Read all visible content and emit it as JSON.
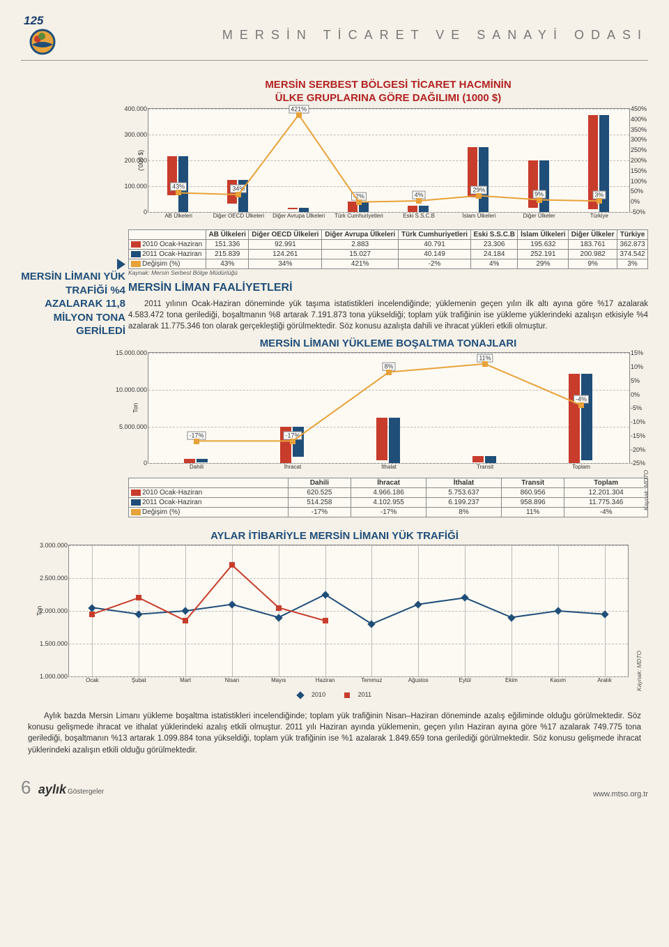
{
  "org_title": "MERSİN TİCARET VE SANAYİ ODASI",
  "logo_num": "125",
  "chart1": {
    "title_line1": "MERSİN SERBEST BÖLGESİ TİCARET HACMİNİN",
    "title_line2": "ÜLKE GRUPLARINA GÖRE DAĞILIMI (1000 $)",
    "ylabel": "('000 $)",
    "yticks_left": [
      "0",
      "100.000",
      "200.000",
      "300.000",
      "400.000"
    ],
    "yticks_right": [
      "-50%",
      "0%",
      "50%",
      "100%",
      "150%",
      "200%",
      "250%",
      "300%",
      "350%",
      "400%",
      "450%"
    ],
    "categories": [
      "AB Ülkeleri",
      "Diğer OECD Ülkeleri",
      "Diğer Avrupa Ülkeleri",
      "Türk Cumhuriyetleri",
      "Eski S.S.C.B",
      "İslam Ülkeleri",
      "Diğer Ülkeler",
      "Türkiye"
    ],
    "row_labels": [
      "2010 Ocak-Haziran",
      "2011 Ocak-Haziran",
      "Değişim (%)"
    ],
    "r2010": [
      "151.336",
      "92.991",
      "2.883",
      "40.791",
      "23.306",
      "195.632",
      "183.761",
      "362.873"
    ],
    "r2011": [
      "215.839",
      "124.261",
      "15.027",
      "40.149",
      "24.184",
      "252.191",
      "200.982",
      "374.542"
    ],
    "chg": [
      "43%",
      "34%",
      "421%",
      "-2%",
      "4%",
      "29%",
      "9%",
      "3%"
    ],
    "bar2010": [
      151336,
      92991,
      2883,
      40791,
      23306,
      195632,
      183761,
      362873
    ],
    "bar2011": [
      215839,
      124261,
      15027,
      40149,
      24184,
      252191,
      200982,
      374542
    ],
    "chg_val": [
      43,
      34,
      421,
      -2,
      4,
      29,
      9,
      3
    ],
    "left_max": 400000,
    "right_min": -50,
    "right_max": 450,
    "kaynak": "Kaynak: Mersin Serbest Bölge Müdürlüğü"
  },
  "sidebar": "MERSİN LİMANI YÜK TRAFİĞİ %4 AZALARAK 11,8 MİLYON TONA GERİLEDİ",
  "section2_title": "MERSİN LİMAN FAALİYETLERİ",
  "para1": "2011 yılının Ocak-Haziran döneminde yük taşıma istatistikleri incelendiğinde; yüklemenin geçen yılın ilk altı ayına göre %17 azalarak 4.583.472 tona gerilediği, boşaltmanın %8 artarak 7.191.873 tona yükseldiği; toplam yük trafiğinin ise yükleme yüklerindeki azalışın etkisiyle %4 azalarak 11.775.346 ton olarak gerçekleştiği görülmektedir. Söz konusu azalışta dahili ve ihracat yükleri etkili olmuştur.",
  "chart2": {
    "title": "MERSİN LİMANI YÜKLEME BOŞALTMA TONAJLARI",
    "ylabel": "Ton",
    "yticks_left": [
      "0",
      "5.000.000",
      "10.000.000",
      "15.000.000"
    ],
    "yticks_right": [
      "-25%",
      "-20%",
      "-15%",
      "-10%",
      "-5%",
      "0%",
      "5%",
      "10%",
      "15%"
    ],
    "categories": [
      "Dahili",
      "İhracat",
      "İthalat",
      "Transit",
      "Toplam"
    ],
    "row_labels": [
      "2010 Ocak-Haziran",
      "2011 Ocak-Haziran",
      "Değişim (%)"
    ],
    "r2010": [
      "620.525",
      "4.966.186",
      "5.753.637",
      "860.956",
      "12.201.304"
    ],
    "r2011": [
      "514.258",
      "4.102.955",
      "6.199.237",
      "958.896",
      "11.775.346"
    ],
    "chg": [
      "-17%",
      "-17%",
      "8%",
      "11%",
      "-4%"
    ],
    "bar2010": [
      620525,
      4966186,
      5753637,
      860956,
      12201304
    ],
    "bar2011": [
      514258,
      4102955,
      6199237,
      958896,
      11775346
    ],
    "chg_val": [
      -17,
      -17,
      8,
      11,
      -4
    ],
    "left_max": 15000000,
    "right_min": -25,
    "right_max": 15,
    "kaynak": "Kaynak: MDTO"
  },
  "chart3": {
    "title": "AYLAR İTİBARİYLE MERSİN LİMANI YÜK TRAFİĞİ",
    "ylabel": "Ton",
    "yticks": [
      "1.000.000",
      "1.500.000",
      "2.000.000",
      "2.500.000",
      "3.000.000"
    ],
    "months": [
      "Ocak",
      "Şubat",
      "Mart",
      "Nisan",
      "Mayıs",
      "Haziran",
      "Temmuz",
      "Ağustos",
      "Eylül",
      "Ekim",
      "Kasım",
      "Aralık"
    ],
    "s2010": [
      2050000,
      1950000,
      2000000,
      2100000,
      1900000,
      2250000,
      1800000,
      2100000,
      2200000,
      1900000,
      2000000,
      1950000
    ],
    "s2011": [
      1950000,
      2200000,
      1850000,
      2700000,
      2050000,
      1850000,
      null,
      null,
      null,
      null,
      null,
      null
    ],
    "ymin": 1000000,
    "ymax": 3000000,
    "kaynak": "Kaynak: MDTO",
    "legend2010": "2010",
    "legend2011": "2011"
  },
  "para2": "Aylık bazda Mersin Limanı yükleme boşaltma istatistikleri incelendiğinde; toplam yük trafiğinin Nisan–Haziran döneminde azalış eğiliminde olduğu görülmektedir. Söz konusu gelişmede ihracat ve ithalat yüklerindeki azalış etkili olmuştur. 2011 yılı Haziran ayında yüklemenin, geçen yılın Haziran ayına göre %17 azalarak 749.775 tona gerilediği, boşaltmanın %13 artarak 1.099.884 tona yükseldiği, toplam yük trafiğinin ise %1 azalarak 1.849.659 tona gerilediği görülmektedir. Söz konusu gelişmede ihracat yüklerindeki azalışın etkili olduğu görülmektedir.",
  "footer": {
    "page": "6",
    "brand": "aylık",
    "sub": "Göstergeler",
    "url": "www.mtso.org.tr"
  },
  "colors": {
    "red": "#c83c2c",
    "blue": "#1f4e79",
    "orange": "#e8a23a",
    "bg": "#f5f1e8"
  }
}
